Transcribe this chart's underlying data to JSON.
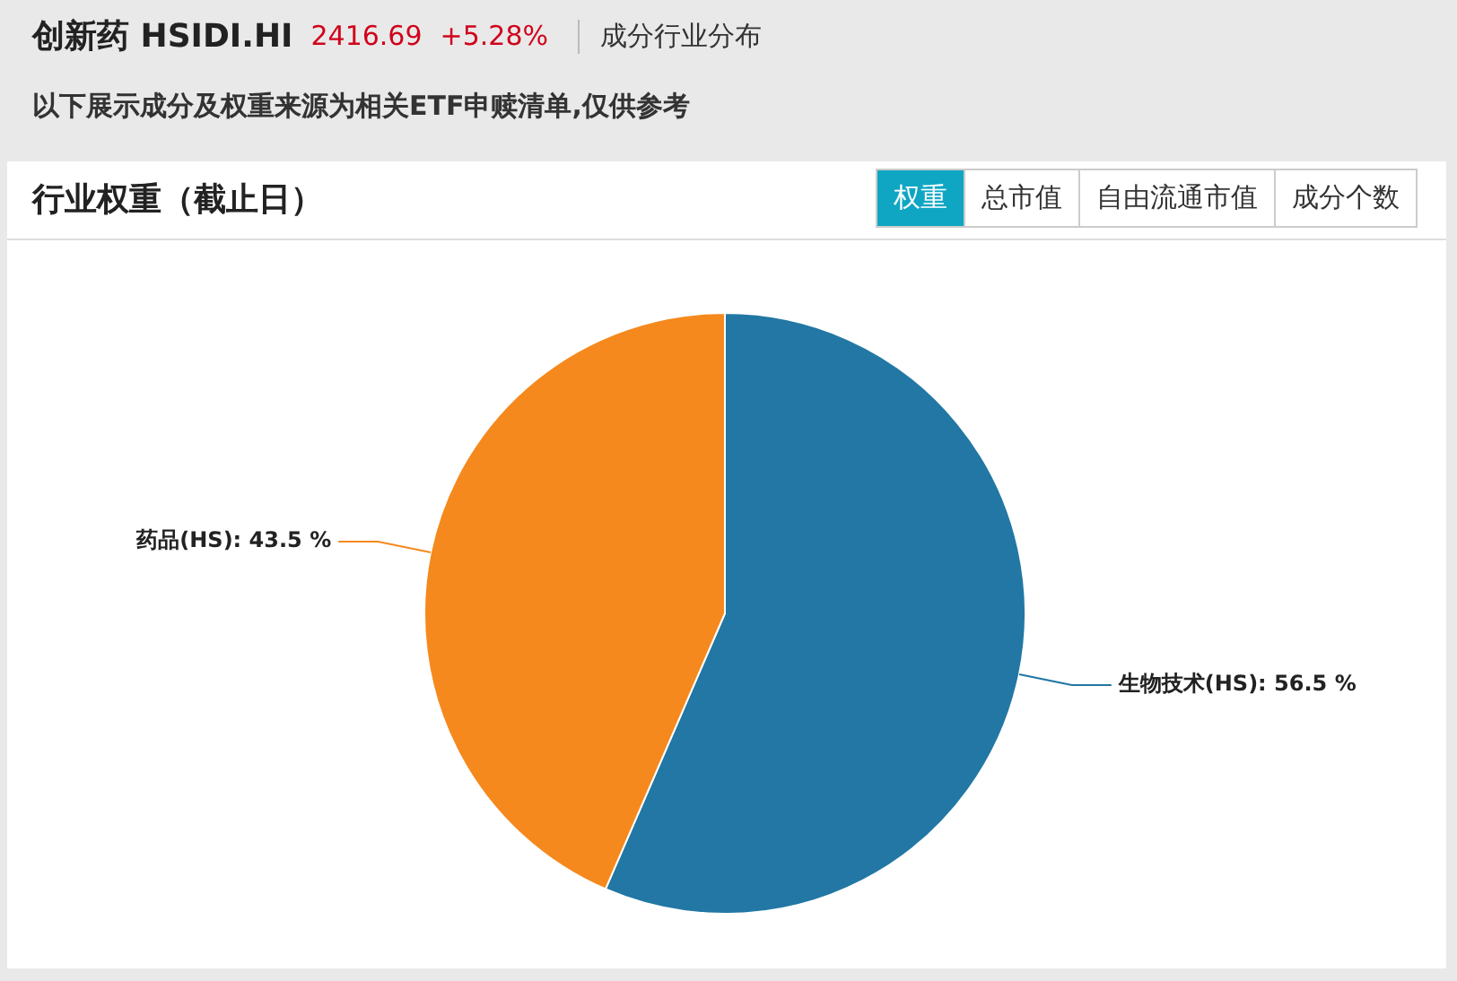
{
  "chart_data": {
    "type": "pie",
    "title": "创新药 HSIDI.HI",
    "subtitle": "以下展示成分及权重来源为相关ETF申赎清单,仅供参考",
    "annotations": [
      "2416.69",
      "+5.28%",
      "成分行业分布",
      "行业权重（截止日）",
      "权重",
      "总市值",
      "自由流通市值",
      "成分个数"
    ],
    "categories": [
      "生物技术(HS)",
      "药品(HS)"
    ],
    "values": [
      56.5,
      43.5
    ],
    "value_labels": [
      "56.5 %",
      "43.5 %"
    ],
    "colors": [
      "#2277a4",
      "#f5891d"
    ],
    "legend": false
  }
}
